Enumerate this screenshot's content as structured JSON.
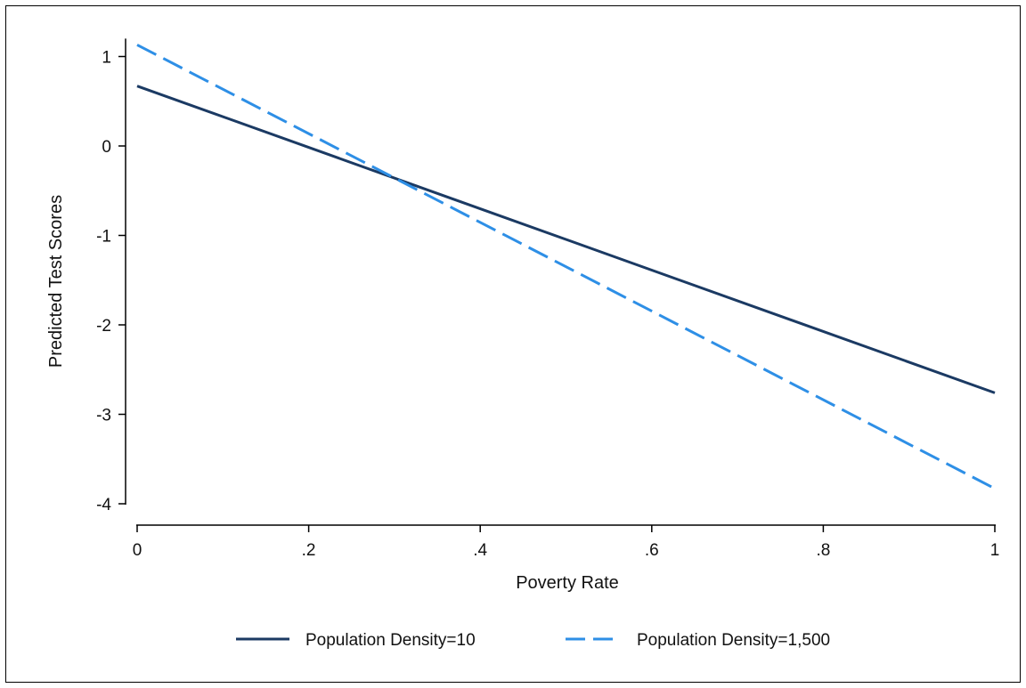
{
  "chart_data": {
    "type": "line",
    "xlabel": "Poverty Rate",
    "ylabel": "Predicted Test Scores",
    "xlim": [
      0,
      1
    ],
    "ylim": [
      -4,
      1.2
    ],
    "x_ticks": [
      0,
      0.2,
      0.4,
      0.6,
      0.8,
      1
    ],
    "x_tick_labels": [
      "0",
      ".2",
      ".4",
      ".6",
      ".8",
      "1"
    ],
    "y_ticks": [
      1,
      0,
      -1,
      -2,
      -3,
      -4
    ],
    "y_tick_labels": [
      "1",
      "0",
      "-1",
      "-2",
      "-3",
      "-4"
    ],
    "grid": false,
    "legend_position": "bottom",
    "series": [
      {
        "name": "Population Density=10",
        "x": [
          0,
          1
        ],
        "y": [
          0.67,
          -2.76
        ],
        "color": "#1b3a63",
        "style": "solid"
      },
      {
        "name": "Population Density=1,500",
        "x": [
          0,
          1
        ],
        "y": [
          1.13,
          -3.83
        ],
        "color": "#2e8fe6",
        "style": "dashed"
      }
    ]
  }
}
